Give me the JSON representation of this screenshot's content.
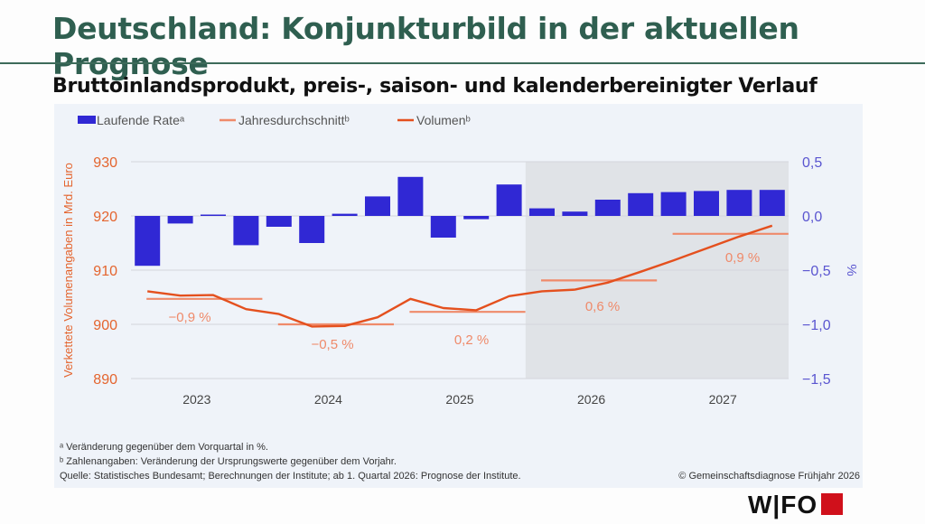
{
  "title": "Deutschland: Konjunkturbild in der aktuellen Prognose",
  "subtitle": "Bruttoinlandsprodukt, preis-, saison- und kalenderbereinigter Verlauf",
  "chart_data": {
    "type": "bar+line",
    "ylabel_left": "Verkettete Volumenangaben in Mrd. Euro",
    "ylabel_right": "%",
    "ylim_left": [
      890,
      930
    ],
    "ylim_right": [
      -1.5,
      0.5
    ],
    "yticks_left": [
      "930",
      "920",
      "910",
      "900",
      "890"
    ],
    "yticks_right": [
      "0,5",
      "0,0",
      "−0,5",
      "−1,0",
      "−1,5"
    ],
    "years": [
      "2023",
      "2024",
      "2025",
      "2026",
      "2027"
    ],
    "quarters": [
      "2023Q1",
      "2023Q2",
      "2023Q3",
      "2023Q4",
      "2024Q1",
      "2024Q2",
      "2024Q3",
      "2024Q4",
      "2025Q1",
      "2025Q2",
      "2025Q3",
      "2025Q4",
      "2026Q1",
      "2026Q2",
      "2026Q3",
      "2026Q4",
      "2027Q1",
      "2027Q2",
      "2027Q3",
      "2027Q4"
    ],
    "forecast_from": "2026Q1",
    "legend": [
      "Laufende Rateᵃ",
      "Jahresdurchschnittᵇ",
      "Volumenᵇ"
    ],
    "series": [
      {
        "name": "Laufende Rate",
        "axis": "right",
        "type": "bar",
        "color": "#3028d4",
        "values": [
          -0.46,
          -0.07,
          0.0,
          -0.27,
          -0.1,
          -0.25,
          0.02,
          0.18,
          0.36,
          -0.2,
          -0.03,
          0.29,
          0.07,
          0.04,
          0.15,
          0.21,
          0.22,
          0.23,
          0.24,
          0.24
        ]
      },
      {
        "name": "Volumen",
        "axis": "left",
        "type": "line",
        "color": "#e4501e",
        "values": [
          906.1,
          905.3,
          905.4,
          902.8,
          901.9,
          899.6,
          899.7,
          901.3,
          904.7,
          903.0,
          902.6,
          905.2,
          906.1,
          906.4,
          907.7,
          909.7,
          911.8,
          914.0,
          916.2,
          918.2
        ]
      },
      {
        "name": "Jahresdurchschnitt",
        "axis": "left",
        "type": "step",
        "color": "#ef8a6a",
        "values": [
          904.7,
          900.0,
          902.3,
          908.1,
          916.7
        ],
        "labels": [
          "−0,9 %",
          "−0,5 %",
          "0,2 %",
          "0,6 %",
          "0,9 %"
        ]
      }
    ]
  },
  "footnotes": [
    "ᵃ Veränderung gegenüber dem Vorquartal in %.",
    "ᵇ Zahlenangaben: Veränderung der Ursprungswerte gegenüber dem Vorjahr.",
    "Quelle: Statistisches Bundesamt; Berechnungen der Institute; ab 1. Quartal 2026: Prognose der Institute."
  ],
  "copyright": "© Gemeinschaftsdiagnose Frühjahr 2026",
  "logo": "WIFO"
}
